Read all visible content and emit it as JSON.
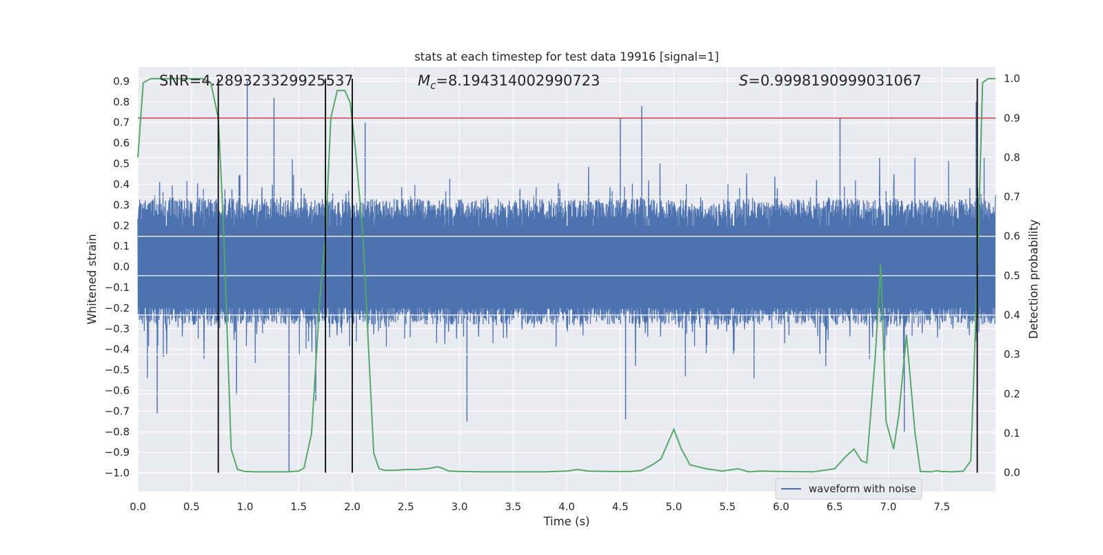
{
  "chart_data": {
    "type": "line",
    "title": "stats at each timestep for test data 19916 [signal=1]",
    "xlabel": "Time (s)",
    "ylabel_left": "Whitened strain",
    "ylabel_right": "Detection probability",
    "xlim": [
      0.0,
      8.0
    ],
    "ylim_left": [
      -1.09,
      0.97
    ],
    "ylim_right": [
      -0.048,
      1.03
    ],
    "x_ticks": [
      "0.0",
      "0.5",
      "1.0",
      "1.5",
      "2.0",
      "2.5",
      "3.0",
      "3.5",
      "4.0",
      "4.5",
      "5.0",
      "5.5",
      "6.0",
      "6.5",
      "7.0",
      "7.5"
    ],
    "y_left_ticks": [
      "0.9",
      "0.8",
      "0.7",
      "0.6",
      "0.5",
      "0.4",
      "0.3",
      "0.2",
      "0.1",
      "0.0",
      "−0.1",
      "−0.2",
      "−0.3",
      "−0.4",
      "−0.5",
      "−0.6",
      "−0.7",
      "−0.8",
      "−0.9",
      "−1.0"
    ],
    "y_right_ticks": [
      "1.0",
      "0.9",
      "0.8",
      "0.7",
      "0.6",
      "0.5",
      "0.4",
      "0.3",
      "0.2",
      "0.1",
      "0.0"
    ],
    "grid": true,
    "legend": {
      "position": "lower-right",
      "entries": [
        "waveform with noise"
      ]
    },
    "annotations": {
      "snr": "SNR=4.289323329925537",
      "mc_symbol": "M",
      "mc_subscript": "c",
      "mc_value": "=8.194314002990723",
      "s_symbol": "S",
      "s_value": "=0.9998190999031067"
    },
    "threshold_right": 0.9,
    "vertical_lines_x": [
      0.75,
      1.75,
      2.0,
      7.83
    ],
    "waveform": {
      "name": "waveform with noise",
      "color": "#4c72b0",
      "samples": 2800,
      "typical_band": [
        -0.28,
        0.33
      ],
      "max_abs_typical": 0.55,
      "spikes": [
        {
          "x": 1.02,
          "y": 0.9
        },
        {
          "x": 1.27,
          "y": 0.82
        },
        {
          "x": 0.18,
          "y": -0.71
        },
        {
          "x": 1.41,
          "y": -1.0
        },
        {
          "x": 3.07,
          "y": -0.75
        },
        {
          "x": 4.55,
          "y": -0.74
        },
        {
          "x": 4.5,
          "y": 0.72
        },
        {
          "x": 4.7,
          "y": 0.78
        },
        {
          "x": 7.15,
          "y": -0.8
        },
        {
          "x": 7.82,
          "y": 0.8
        },
        {
          "x": 6.55,
          "y": 0.72
        },
        {
          "x": 2.12,
          "y": 0.7
        },
        {
          "x": 0.92,
          "y": -0.62
        },
        {
          "x": 1.66,
          "y": -0.65
        }
      ]
    },
    "probability": {
      "name": "Detection probability",
      "color": "#55a868",
      "x": [
        0.0,
        0.05,
        0.12,
        0.2,
        0.3,
        0.4,
        0.5,
        0.6,
        0.68,
        0.75,
        0.8,
        0.87,
        0.93,
        1.0,
        1.1,
        1.2,
        1.3,
        1.4,
        1.5,
        1.55,
        1.62,
        1.7,
        1.75,
        1.8,
        1.86,
        1.93,
        1.98,
        2.03,
        2.1,
        2.2,
        2.25,
        2.3,
        2.4,
        2.5,
        2.6,
        2.7,
        2.8,
        2.85,
        2.9,
        3.0,
        3.2,
        3.5,
        3.8,
        4.0,
        4.1,
        4.2,
        4.4,
        4.6,
        4.7,
        4.8,
        4.88,
        5.0,
        5.07,
        5.15,
        5.3,
        5.45,
        5.6,
        5.7,
        5.8,
        6.0,
        6.3,
        6.5,
        6.6,
        6.68,
        6.75,
        6.8,
        6.88,
        6.93,
        6.98,
        7.05,
        7.1,
        7.17,
        7.25,
        7.3,
        7.4,
        7.45,
        7.5,
        7.6,
        7.7,
        7.77,
        7.83,
        7.88,
        7.93,
        8.0
      ],
      "y": [
        0.8,
        0.99,
        1.0,
        1.0,
        1.0,
        1.0,
        1.0,
        1.0,
        0.99,
        0.9,
        0.62,
        0.06,
        0.008,
        0.003,
        0.002,
        0.002,
        0.002,
        0.002,
        0.004,
        0.012,
        0.1,
        0.45,
        0.6,
        0.9,
        0.97,
        0.97,
        0.94,
        0.82,
        0.6,
        0.05,
        0.01,
        0.006,
        0.006,
        0.008,
        0.008,
        0.01,
        0.015,
        0.01,
        0.004,
        0.003,
        0.002,
        0.002,
        0.002,
        0.004,
        0.008,
        0.004,
        0.003,
        0.003,
        0.006,
        0.02,
        0.035,
        0.11,
        0.06,
        0.02,
        0.01,
        0.004,
        0.01,
        0.002,
        0.004,
        0.003,
        0.002,
        0.01,
        0.04,
        0.06,
        0.03,
        0.025,
        0.3,
        0.53,
        0.13,
        0.06,
        0.15,
        0.35,
        0.1,
        0.003,
        0.002,
        0.005,
        0.003,
        0.002,
        0.004,
        0.03,
        0.5,
        0.99,
        1.0,
        1.0
      ]
    },
    "colors": {
      "background": "#eaeaf2",
      "grid": "#ffffff",
      "threshold": "#c44e52",
      "vline": "#000000"
    }
  }
}
